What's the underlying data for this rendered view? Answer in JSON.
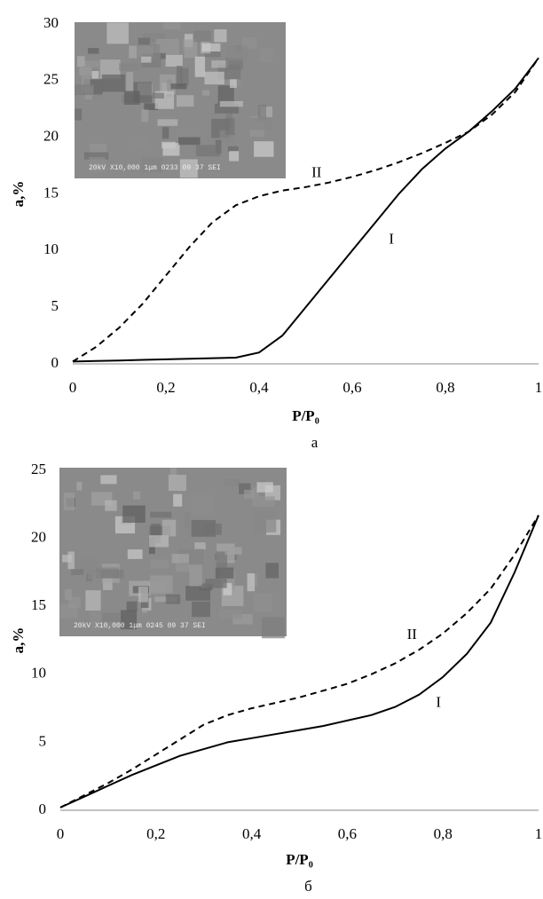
{
  "chart_data": [
    {
      "type": "line",
      "caption": "а",
      "x_label": "P/P₀",
      "y_label": "a,%",
      "inset_label": "20kV X10,000 1μm 0233 09 37 SEI",
      "xlim": [
        0,
        1
      ],
      "ylim": [
        0,
        30
      ],
      "xticks": [
        0,
        {
          "value": 0.2,
          "label": "0,2"
        },
        {
          "value": 0.4,
          "label": "0,4"
        },
        {
          "value": 0.6,
          "label": "0,6"
        },
        {
          "value": 0.8,
          "label": "0,8"
        },
        1
      ],
      "yticks": [
        0,
        5,
        10,
        15,
        20,
        25,
        30
      ],
      "x": [
        0,
        0.05,
        0.1,
        0.15,
        0.2,
        0.25,
        0.3,
        0.35,
        0.4,
        0.45,
        0.5,
        0.55,
        0.6,
        0.65,
        0.7,
        0.75,
        0.8,
        0.85,
        0.9,
        0.95,
        1
      ],
      "series": [
        {
          "name": "I",
          "color": "#000000",
          "dashed": false,
          "values": [
            0.2,
            0.25,
            0.3,
            0.35,
            0.4,
            0.45,
            0.5,
            0.55,
            1.0,
            2.5,
            5,
            7.5,
            10,
            12.5,
            15,
            17.2,
            19,
            20.5,
            22.3,
            24.3,
            27
          ]
        },
        {
          "name": "II",
          "color": "#000000",
          "dashed": true,
          "values": [
            0.2,
            1.5,
            3.2,
            5.3,
            7.8,
            10.3,
            12.5,
            14,
            14.8,
            15.3,
            15.6,
            16,
            16.5,
            17.1,
            17.8,
            18.6,
            19.5,
            20.5,
            22,
            24,
            27
          ]
        }
      ]
    },
    {
      "type": "line",
      "caption": "б",
      "x_label": "P/P₀",
      "y_label": "a,%",
      "inset_label": "20kV X10,000 1μm 0245 09 37 SEI",
      "xlim": [
        0,
        1
      ],
      "ylim": [
        0,
        25
      ],
      "xticks": [
        0,
        {
          "value": 0.2,
          "label": "0,2"
        },
        {
          "value": 0.4,
          "label": "0,4"
        },
        {
          "value": 0.6,
          "label": "0,6"
        },
        {
          "value": 0.8,
          "label": "0,8"
        },
        1
      ],
      "yticks": [
        0,
        5,
        10,
        15,
        20,
        25
      ],
      "x": [
        0,
        0.05,
        0.1,
        0.15,
        0.2,
        0.25,
        0.3,
        0.35,
        0.4,
        0.45,
        0.5,
        0.55,
        0.6,
        0.65,
        0.7,
        0.75,
        0.8,
        0.85,
        0.9,
        0.95,
        1
      ],
      "series": [
        {
          "name": "I",
          "color": "#000000",
          "dashed": false,
          "values": [
            0.2,
            1,
            1.8,
            2.6,
            3.3,
            4,
            4.5,
            5,
            5.3,
            5.6,
            5.9,
            6.2,
            6.6,
            7,
            7.6,
            8.5,
            9.8,
            11.5,
            13.8,
            17.5,
            21.7
          ]
        },
        {
          "name": "II",
          "color": "#000000",
          "dashed": true,
          "values": [
            0.2,
            1.1,
            2,
            3,
            4.1,
            5.2,
            6.3,
            7,
            7.5,
            7.9,
            8.3,
            8.8,
            9.3,
            10,
            10.8,
            11.8,
            13,
            14.5,
            16.3,
            18.8,
            21.7
          ]
        }
      ]
    }
  ]
}
